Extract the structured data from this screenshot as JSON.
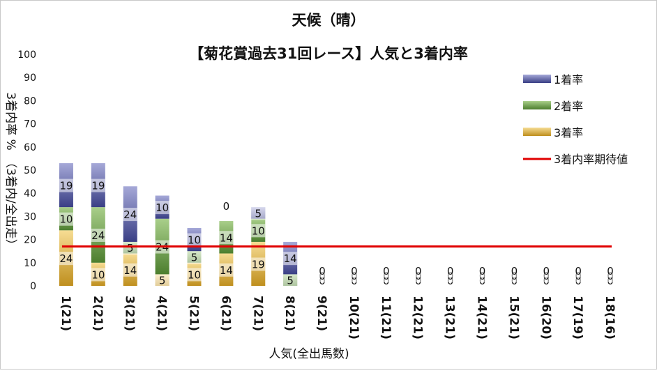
{
  "chart_data": {
    "type": "bar",
    "title": "天候（晴）",
    "subtitle": "【菊花賞過去31回レース】人気と3着内率",
    "xlabel": "人気(全出馬数)",
    "ylabel": "3着内率 %　（3着内/全出走）",
    "ylim": [
      0,
      100
    ],
    "yticks": [
      "0",
      "10",
      "20",
      "30",
      "40",
      "50",
      "60",
      "70",
      "80",
      "90",
      "100"
    ],
    "categories": [
      "1(21)",
      "2(21)",
      "3(21)",
      "4(21)",
      "5(21)",
      "6(21)",
      "7(21)",
      "8(21)",
      "9(21)",
      "10(21)",
      "11(21)",
      "12(21)",
      "13(21)",
      "14(21)",
      "15(21)",
      "16(20)",
      "17(19)",
      "18(16)"
    ],
    "series": [
      {
        "name": "3着率",
        "values": [
          24,
          10,
          14,
          5,
          10,
          14,
          19,
          0,
          0,
          0,
          0,
          0,
          0,
          0,
          0,
          0,
          0,
          0
        ]
      },
      {
        "name": "2着率",
        "values": [
          10,
          24,
          5,
          24,
          5,
          14,
          10,
          5,
          0,
          0,
          0,
          0,
          0,
          0,
          0,
          0,
          0,
          0
        ]
      },
      {
        "name": "1着率",
        "values": [
          19,
          19,
          24,
          10,
          10,
          0,
          5,
          14,
          0,
          0,
          0,
          0,
          0,
          0,
          0,
          0,
          0,
          0
        ]
      }
    ],
    "line": {
      "name": "3着内率期待値",
      "value": 17
    },
    "legend_order": [
      "1着率",
      "2着率",
      "3着率",
      "3着内率期待値"
    ],
    "legend_position": "right",
    "colors": {
      "1着率": [
        "#3a3f85",
        "#a6a9d8"
      ],
      "2着率": [
        "#4c7e2e",
        "#a9cf8a"
      ],
      "3着率": [
        "#bf8f1e",
        "#f6dc93"
      ],
      "3着内率期待値": "#e00000"
    },
    "grid": false
  }
}
